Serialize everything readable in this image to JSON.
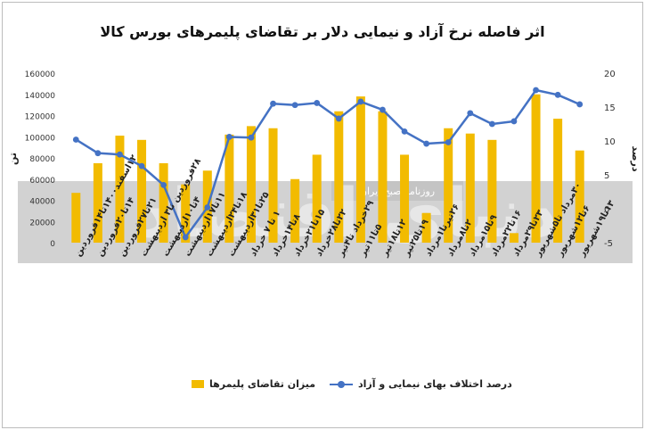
{
  "chart_data": {
    "type": "bar",
    "title": "اثر فاصله نرخ آزاد و نیمایی دلار بر تقاضای پلیمرهای بورس کالا",
    "ylabel_left": "تن",
    "ylabel_right": "درصد",
    "ylim_left": [
      0,
      160000
    ],
    "ylim_right": [
      -5,
      20
    ],
    "left_ticks": [
      "0",
      "20000",
      "40000",
      "60000",
      "80000",
      "100000",
      "120000",
      "140000",
      "160000"
    ],
    "right_ticks": [
      "-5",
      "0",
      "5",
      "10",
      "15",
      "20"
    ],
    "categories": [
      "۱۲اسفند۱۴۰۰تا۱۴فروردین",
      "۱۴تا۲۰فروردین",
      "۲۱تا۲۷فروردین",
      "۲۸فروردین تا۳ اردیبهشت",
      "۴تا۱۰اردیبهشت",
      "۱۱تا۱۷اردیبهشت",
      "۱۸تا۲۴اردیبهشت",
      "۲۵تا۳۱اردیبهشت",
      "۱ تا ۷ خرداد",
      "۸تا۱۴خرداد",
      "۱۵تا۲۱خرداد",
      "۲۲تا۲۸خرداد",
      "۲۹خرداد تا۴تیر",
      "۵تا۱۱تیر",
      "۱۲تا۱۸تیر",
      "۱۹تا۲۵تیر",
      "۲۶تیرتا۱مرداد",
      "۲تا۸مرداد",
      "۹تا۱۵مرداد",
      "۱۶تا۲۲مرداد",
      "۲۳تا۲۹مرداد",
      "۳۰مرداد تا۵شهریور",
      "۶تا۱۲شهریور",
      "۱۳تا۱۹شهریور"
    ],
    "series": [
      {
        "name": "میزان تقاضای پلیمرها",
        "kind": "bar",
        "axis": "left",
        "color": "#f2bb00",
        "values": [
          47000,
          75000,
          101000,
          97000,
          75000,
          55000,
          68000,
          102000,
          110000,
          108000,
          60000,
          83000,
          124000,
          138000,
          124000,
          83000,
          28000,
          108000,
          103000,
          97000,
          9000,
          140000,
          117000,
          87000
        ]
      },
      {
        "name": "درصد اختلاف بهای نیمایی و آزاد",
        "kind": "line",
        "axis": "right",
        "color": "#4472c4",
        "values": [
          10.2,
          8.2,
          8.0,
          6.3,
          3.5,
          -4.2,
          0.2,
          10.6,
          10.5,
          15.5,
          15.3,
          15.6,
          13.3,
          15.8,
          14.6,
          11.4,
          9.6,
          9.8,
          14.1,
          12.5,
          12.9,
          17.5,
          16.8,
          15.4
        ]
      }
    ],
    "grid": false,
    "legend_position": "bottom"
  },
  "watermark": {
    "newspaper": "روزنامه صبح ایران",
    "brand": "دنیای اقتصاد"
  }
}
